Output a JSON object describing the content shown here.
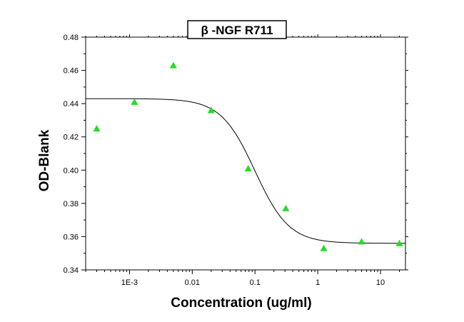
{
  "chart_data": {
    "type": "scatter",
    "title": "β -NGF R711",
    "xlabel": "Concentration (ug/ml)",
    "ylabel": "OD-Blank",
    "x_scale": "log",
    "xlim": [
      0.0002,
      25
    ],
    "ylim": [
      0.34,
      0.48
    ],
    "x_tick_values": [
      0.001,
      0.01,
      0.1,
      1,
      10
    ],
    "x_tick_labels": [
      "1E-3",
      "0.01",
      "0.1",
      "1",
      "10"
    ],
    "y_tick_values": [
      0.34,
      0.36,
      0.38,
      0.4,
      0.42,
      0.44,
      0.46,
      0.48
    ],
    "y_tick_labels": [
      "0.34",
      "0.36",
      "0.38",
      "0.40",
      "0.42",
      "0.44",
      "0.46",
      "0.48"
    ],
    "grid": false,
    "legend": "none",
    "series": [
      {
        "marker": "triangle",
        "color": "#22dd22",
        "points": [
          {
            "x": 0.0003,
            "y": 0.425
          },
          {
            "x": 0.0012,
            "y": 0.441
          },
          {
            "x": 0.005,
            "y": 0.463
          },
          {
            "x": 0.02,
            "y": 0.436
          },
          {
            "x": 0.078,
            "y": 0.401
          },
          {
            "x": 0.31,
            "y": 0.377
          },
          {
            "x": 1.25,
            "y": 0.353
          },
          {
            "x": 5,
            "y": 0.357
          },
          {
            "x": 20,
            "y": 0.356
          }
        ]
      }
    ],
    "fit_curve": {
      "model": "4PL",
      "top": 0.443,
      "bottom": 0.356,
      "ec50": 0.1,
      "hill": 1.6,
      "color": "#000000"
    }
  }
}
